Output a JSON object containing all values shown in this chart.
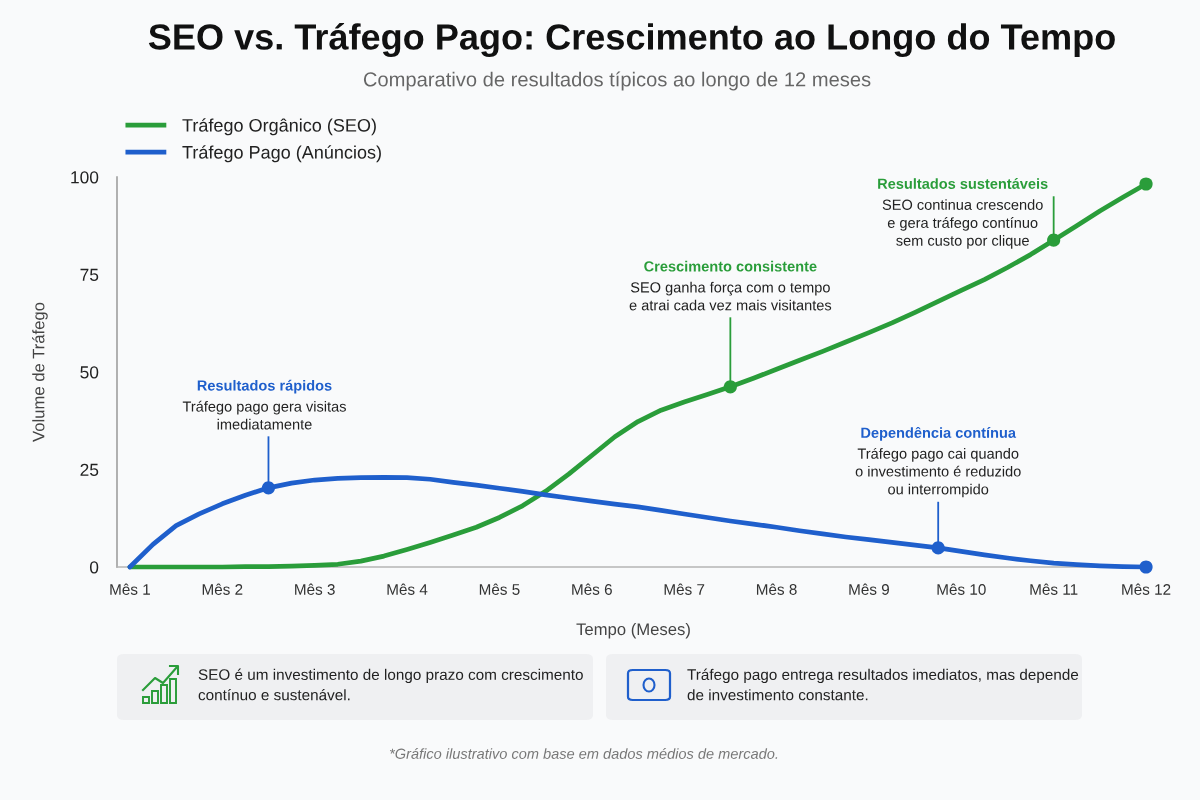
{
  "chart_data": {
    "type": "line",
    "title": "SEO vs. Tráfego Pago: Crescimento ao Longo do Tempo",
    "subtitle": "Comparativo de resultados típicos ao longo de 12 meses",
    "xlabel": "Tempo (Meses)",
    "ylabel": "Volume de Tráfego",
    "categories": [
      "Mês 1",
      null,
      null,
      null,
      "Mês 2",
      null,
      null,
      null,
      "Mês 3",
      null,
      null,
      null,
      "Mês 4",
      null,
      null,
      null,
      "Mês 5",
      null,
      null,
      null,
      "Mês 6",
      null,
      null,
      null,
      "Mês 7",
      null,
      null,
      null,
      "Mês 8",
      null,
      null,
      null,
      "Mês 9",
      null,
      null,
      null,
      "Mês 10",
      null,
      null,
      null,
      "Mês 11",
      null,
      null,
      null,
      "Mês 12"
    ],
    "ylim": [
      0,
      100
    ],
    "yticks": [
      0,
      25,
      50,
      75,
      100
    ],
    "legend": "top left",
    "series": [
      {
        "name": "Tráfego Orgânico (SEO)",
        "color": "#2a9d3a",
        "values": [
          0,
          0,
          0,
          0,
          0,
          0.1,
          0.1,
          0.2,
          0.4,
          0.7,
          1.5,
          2.8,
          4.5,
          6.3,
          8.2,
          10.2,
          12.7,
          15.7,
          19.4,
          23.8,
          28.6,
          33.4,
          37.3,
          40.2,
          42.3,
          44.2,
          46.2,
          48.4,
          50.7,
          53.0,
          55.3,
          57.7,
          60.1,
          62.6,
          65.3,
          68.1,
          70.9,
          73.7,
          76.8,
          80.1,
          83.8,
          87.5,
          91.3,
          94.8,
          98.2
        ]
      },
      {
        "name": "Tráfego Pago (Anúncios)",
        "color": "#1f5fcc",
        "values": [
          0,
          5.8,
          10.6,
          13.6,
          16.2,
          18.4,
          20.3,
          21.5,
          22.3,
          22.7,
          22.9,
          23.0,
          22.9,
          22.5,
          21.7,
          21.0,
          20.2,
          19.4,
          18.5,
          17.7,
          16.9,
          16.1,
          15.4,
          14.5,
          13.6,
          12.7,
          11.8,
          11.0,
          10.2,
          9.3,
          8.5,
          7.7,
          7.0,
          6.3,
          5.6,
          4.9,
          4.0,
          3.1,
          2.3,
          1.6,
          1.0,
          0.6,
          0.3,
          0.1,
          0
        ]
      },
      {
        "type": "scatter",
        "color": "#2a9d3a",
        "marker": "circle",
        "values": [
          null,
          null,
          null,
          null,
          null,
          null,
          null,
          null,
          null,
          null,
          null,
          null,
          null,
          null,
          null,
          null,
          null,
          null,
          null,
          null,
          null,
          null,
          null,
          null,
          null,
          null,
          46.2,
          null,
          null,
          null,
          null,
          null,
          null,
          null,
          null,
          null,
          null,
          null,
          null,
          null,
          83.8,
          null,
          null,
          null,
          98.2
        ]
      },
      {
        "type": "scatter",
        "color": "#1f5fcc",
        "marker": "circle",
        "values": [
          null,
          null,
          null,
          null,
          null,
          null,
          20.3,
          null,
          null,
          null,
          null,
          null,
          null,
          null,
          null,
          null,
          null,
          null,
          null,
          null,
          null,
          null,
          null,
          null,
          null,
          null,
          null,
          null,
          null,
          null,
          null,
          null,
          null,
          null,
          null,
          4.9,
          null,
          null,
          null,
          null,
          null,
          null,
          null,
          null,
          0
        ]
      }
    ],
    "annotations": [
      {
        "text": "Resultados rápidos\nTráfego pago gera visitas\nimediatamente",
        "y": 20.3
      },
      {
        "text": "Crescimento consistente\nSEO ganha força com o tempo\ne atrai cada vez mais visitantes",
        "y": 46.2
      },
      {
        "text": "Resultados sustentáveis\nSEO continua crescendo\ne gera tráfego contínuo\nsem custo por clique",
        "x": "Mês 11",
        "y": 83.8
      },
      {
        "text": "Dependência contínua\nTráfego pago cai quando\no investimento é reduzido\nou interrompido",
        "y": 4.9
      },
      "SEO é um investimento de longo prazo com crescimento\ncontínuo e sustenável.",
      "Tráfego pago entrega resultados imediatos, mas depende\nde investimento constante.",
      "*Gráfico ilustrativo com base em dados médios de mercado."
    ]
  }
}
